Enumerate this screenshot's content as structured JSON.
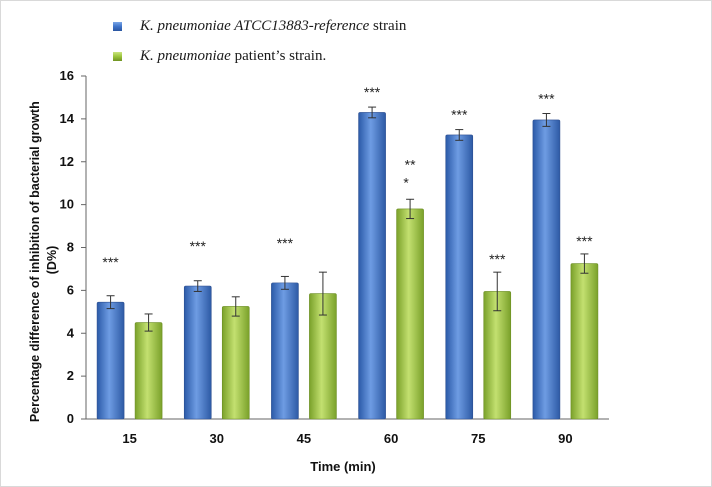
{
  "chart_data": {
    "type": "bar",
    "title": "",
    "xlabel": "Time (min)",
    "ylabel_line1": "Percentage difference of inhibition of bacterial growth",
    "ylabel_line2": "(D%)",
    "ylim": [
      0,
      16
    ],
    "yticks": [
      0,
      2,
      4,
      6,
      8,
      10,
      12,
      14,
      16
    ],
    "categories": [
      "15",
      "30",
      "45",
      "60",
      "75",
      "90"
    ],
    "series": [
      {
        "name_italic": "K. pneumoniae ATCC13883-reference",
        "name_rest": " strain",
        "color": "#3f74c9",
        "values": [
          5.45,
          6.2,
          6.35,
          14.3,
          13.25,
          13.95
        ],
        "errors": [
          0.3,
          0.25,
          0.3,
          0.25,
          0.25,
          0.3
        ],
        "annotations": [
          "***",
          "***",
          "***",
          "***",
          "***",
          "***"
        ]
      },
      {
        "name_italic": "K. pneumoniae",
        "name_rest": " patient’s strain.",
        "color": "#9bc43b",
        "values": [
          4.5,
          5.25,
          5.85,
          9.8,
          5.95,
          7.25
        ],
        "errors": [
          0.4,
          0.45,
          1.0,
          0.45,
          0.9,
          0.45
        ],
        "annotations": [
          "",
          "",
          "",
          "***",
          "***",
          "***"
        ]
      }
    ],
    "legend_position": "top-left"
  }
}
